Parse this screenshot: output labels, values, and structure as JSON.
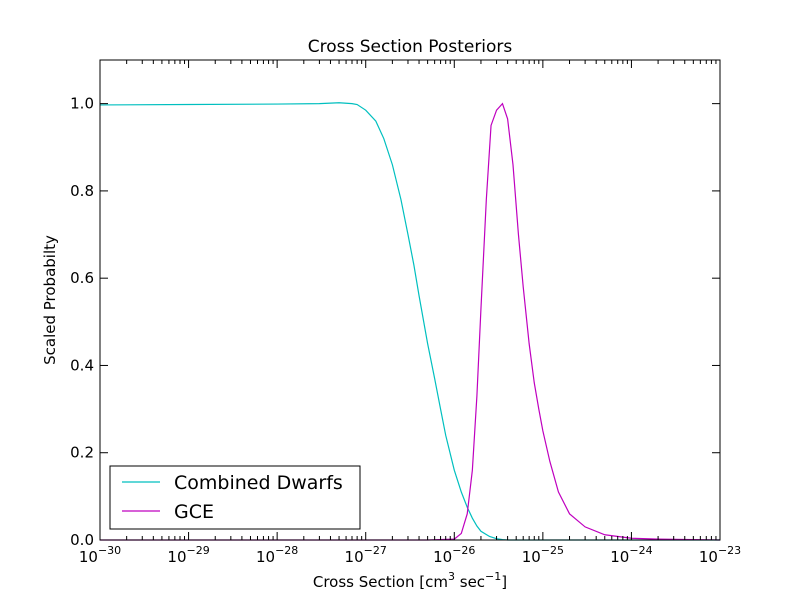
{
  "chart_data": {
    "type": "line",
    "title": "Cross Section Posteriors",
    "xlabel": "Cross Section [cm",
    "xlabel_sup1": "3",
    "xlabel_mid": " sec",
    "xlabel_sup2": "−1",
    "xlabel_end": "]",
    "ylabel": "Scaled Probabilty",
    "xscale": "log",
    "xlim": [
      1e-30,
      1e-23
    ],
    "ylim": [
      0.0,
      1.1
    ],
    "x_ticks": [
      {
        "base": "10",
        "exp": "−30"
      },
      {
        "base": "10",
        "exp": "−29"
      },
      {
        "base": "10",
        "exp": "−28"
      },
      {
        "base": "10",
        "exp": "−27"
      },
      {
        "base": "10",
        "exp": "−26"
      },
      {
        "base": "10",
        "exp": "−25"
      },
      {
        "base": "10",
        "exp": "−24"
      },
      {
        "base": "10",
        "exp": "−23"
      }
    ],
    "y_ticks": [
      "0.0",
      "0.2",
      "0.4",
      "0.6",
      "0.8",
      "1.0"
    ],
    "legend_position": "lower-left",
    "series": [
      {
        "name": "Combined Dwarfs",
        "color": "#00bfbf",
        "x": [
          1e-30,
          1e-29,
          1e-28,
          3e-28,
          5e-28,
          7e-28,
          8e-28,
          1e-27,
          1.3e-27,
          1.6e-27,
          2e-27,
          2.5e-27,
          3e-27,
          3.5e-27,
          4e-27,
          5e-27,
          6e-27,
          7e-27,
          8e-27,
          1e-26,
          1.2e-26,
          1.4e-26,
          1.6e-26,
          1.8e-26,
          2e-26,
          2.5e-26,
          3e-26,
          3.5e-26,
          4e-26,
          6e-26,
          1e-25,
          1e-24,
          1e-23
        ],
        "y": [
          0.997,
          0.998,
          0.999,
          1.0,
          1.002,
          1.0,
          0.998,
          0.985,
          0.96,
          0.92,
          0.86,
          0.78,
          0.7,
          0.63,
          0.56,
          0.45,
          0.37,
          0.3,
          0.24,
          0.16,
          0.11,
          0.075,
          0.05,
          0.032,
          0.02,
          0.008,
          0.003,
          0.001,
          0.0,
          0.0,
          0.0,
          0.0,
          0.0
        ]
      },
      {
        "name": "GCE",
        "color": "#bf00bf",
        "x": [
          1e-30,
          1e-27,
          5e-27,
          1e-26,
          1.2e-26,
          1.4e-26,
          1.6e-26,
          1.8e-26,
          2e-26,
          2.3e-26,
          2.6e-26,
          3e-26,
          3.5e-26,
          4e-26,
          4.6e-26,
          5.3e-26,
          6e-26,
          7e-26,
          8e-26,
          9e-26,
          1e-25,
          1.2e-25,
          1.5e-25,
          2e-25,
          3e-25,
          5e-25,
          1e-24,
          2e-24,
          5e-24,
          1e-23
        ],
        "y": [
          0.0,
          0.0,
          0.0,
          0.002,
          0.015,
          0.06,
          0.16,
          0.33,
          0.53,
          0.78,
          0.95,
          0.985,
          1.0,
          0.965,
          0.86,
          0.7,
          0.58,
          0.45,
          0.36,
          0.3,
          0.25,
          0.18,
          0.11,
          0.06,
          0.03,
          0.012,
          0.004,
          0.002,
          0.001,
          0.0
        ]
      }
    ]
  }
}
